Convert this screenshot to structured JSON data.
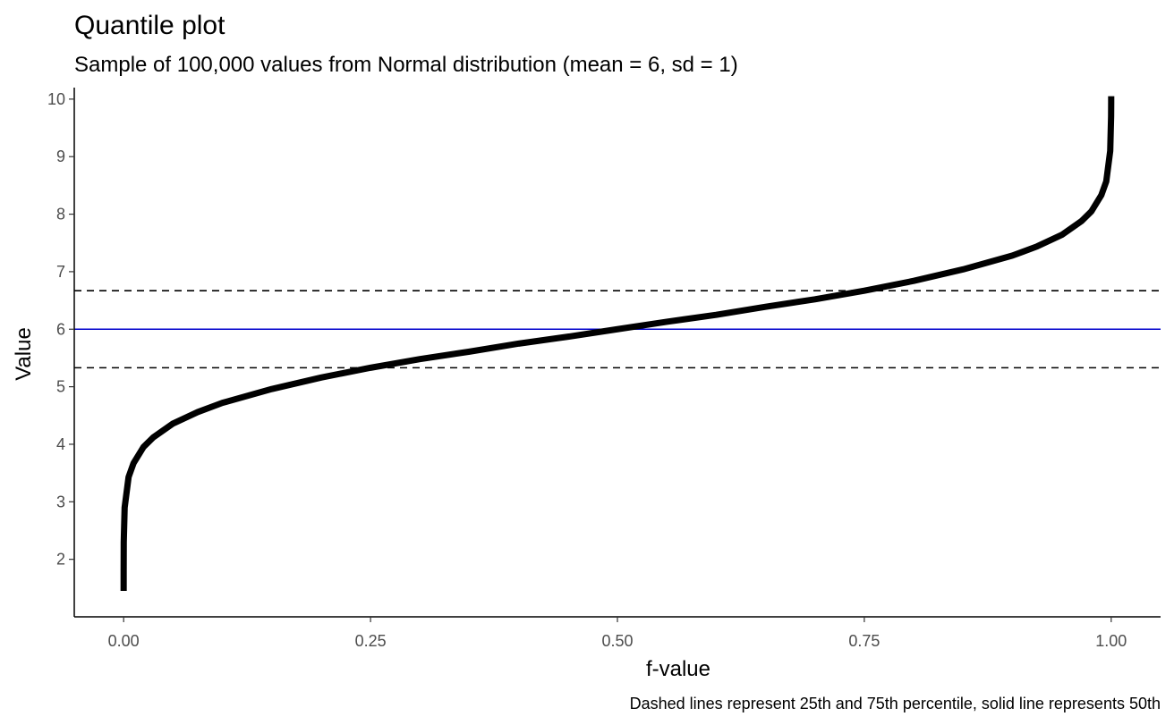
{
  "chart_data": {
    "type": "line",
    "title": "Quantile plot",
    "subtitle": "Sample of 100,000 values from Normal distribution (mean = 6, sd = 1)",
    "xlabel": "f-value",
    "ylabel": "Value",
    "caption": "Dashed lines represent 25th and 75th percentile, solid line represents 50th",
    "xlim": [
      -0.05,
      1.05
    ],
    "ylim": [
      1.0,
      10.2
    ],
    "x_ticks": [
      0.0,
      0.25,
      0.5,
      0.75,
      1.0
    ],
    "x_tick_labels": [
      "0.00",
      "0.25",
      "0.50",
      "0.75",
      "1.00"
    ],
    "y_ticks": [
      2,
      3,
      4,
      5,
      6,
      7,
      8,
      9,
      10
    ],
    "y_tick_labels": [
      "2",
      "3",
      "4",
      "5",
      "6",
      "7",
      "8",
      "9",
      "10"
    ],
    "grid": false,
    "series": [
      {
        "x": [
          0.0,
          1e-05,
          0.0001,
          0.001,
          0.005,
          0.01,
          0.02,
          0.03,
          0.05,
          0.075,
          0.1,
          0.15,
          0.2,
          0.25,
          0.3,
          0.35,
          0.4,
          0.45,
          0.5,
          0.55,
          0.6,
          0.65,
          0.7,
          0.75,
          0.8,
          0.85,
          0.9,
          0.925,
          0.95,
          0.97,
          0.98,
          0.99,
          0.995,
          0.999,
          0.9999,
          0.99999,
          1.0
        ],
        "y": [
          1.45,
          1.8,
          2.3,
          2.9,
          3.43,
          3.67,
          3.95,
          4.12,
          4.36,
          4.56,
          4.72,
          4.96,
          5.16,
          5.33,
          5.48,
          5.61,
          5.75,
          5.87,
          6.0,
          6.13,
          6.25,
          6.39,
          6.52,
          6.67,
          6.84,
          7.04,
          7.28,
          7.44,
          7.64,
          7.88,
          8.05,
          8.33,
          8.57,
          9.1,
          9.7,
          9.95,
          10.05
        ],
        "color": "#000000"
      }
    ],
    "reference_lines": [
      {
        "y": 5.33,
        "style": "dashed",
        "color": "#000000"
      },
      {
        "y": 6.0,
        "style": "solid",
        "color": "#0000cc"
      },
      {
        "y": 6.67,
        "style": "dashed",
        "color": "#000000"
      }
    ]
  }
}
